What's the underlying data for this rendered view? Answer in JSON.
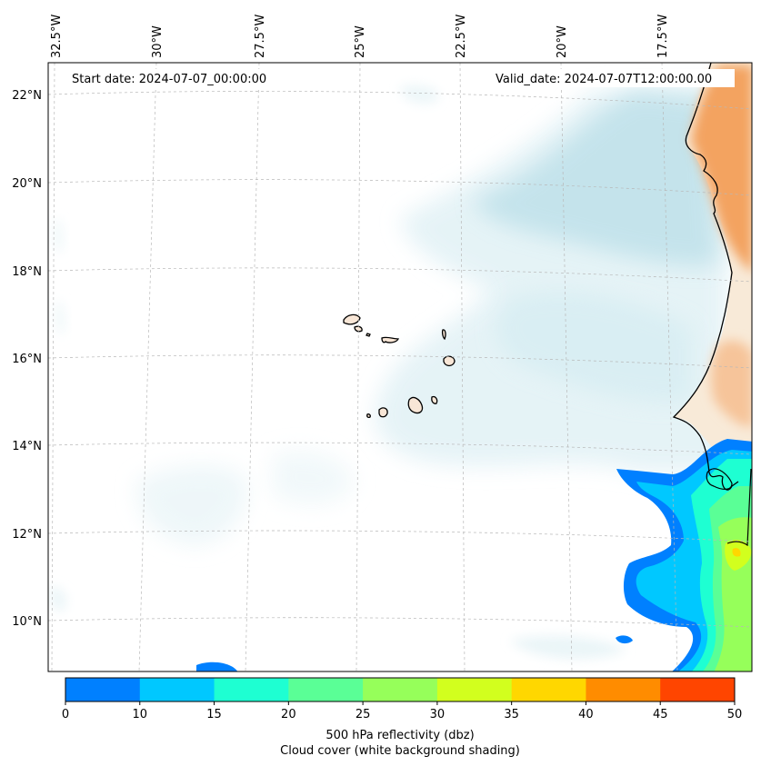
{
  "map": {
    "start_label": "Start date: 2024-07-07_00:00:00",
    "valid_label": "Valid_date: 2024-07-07T12:00:00.00",
    "lon_labels": [
      "32.5°W",
      "30°W",
      "27.5°W",
      "25°W",
      "22.5°W",
      "20°W",
      "17.5°W"
    ],
    "lat_labels": [
      "22°N",
      "20°N",
      "18°N",
      "16°N",
      "14°N",
      "12°N",
      "10°N"
    ]
  },
  "colorbar": {
    "ticks": [
      "0",
      "10",
      "15",
      "20",
      "25",
      "30",
      "35",
      "40",
      "45",
      "50"
    ],
    "colors": [
      "#0080ff",
      "#00c8ff",
      "#1effd2",
      "#5aff96",
      "#96ff5a",
      "#d2ff1e",
      "#ffd700",
      "#ff8c00",
      "#ff4500"
    ],
    "title_line1": "500 hPa reflectivity (dbz)",
    "title_line2": "Cloud cover (white background shading)"
  }
}
